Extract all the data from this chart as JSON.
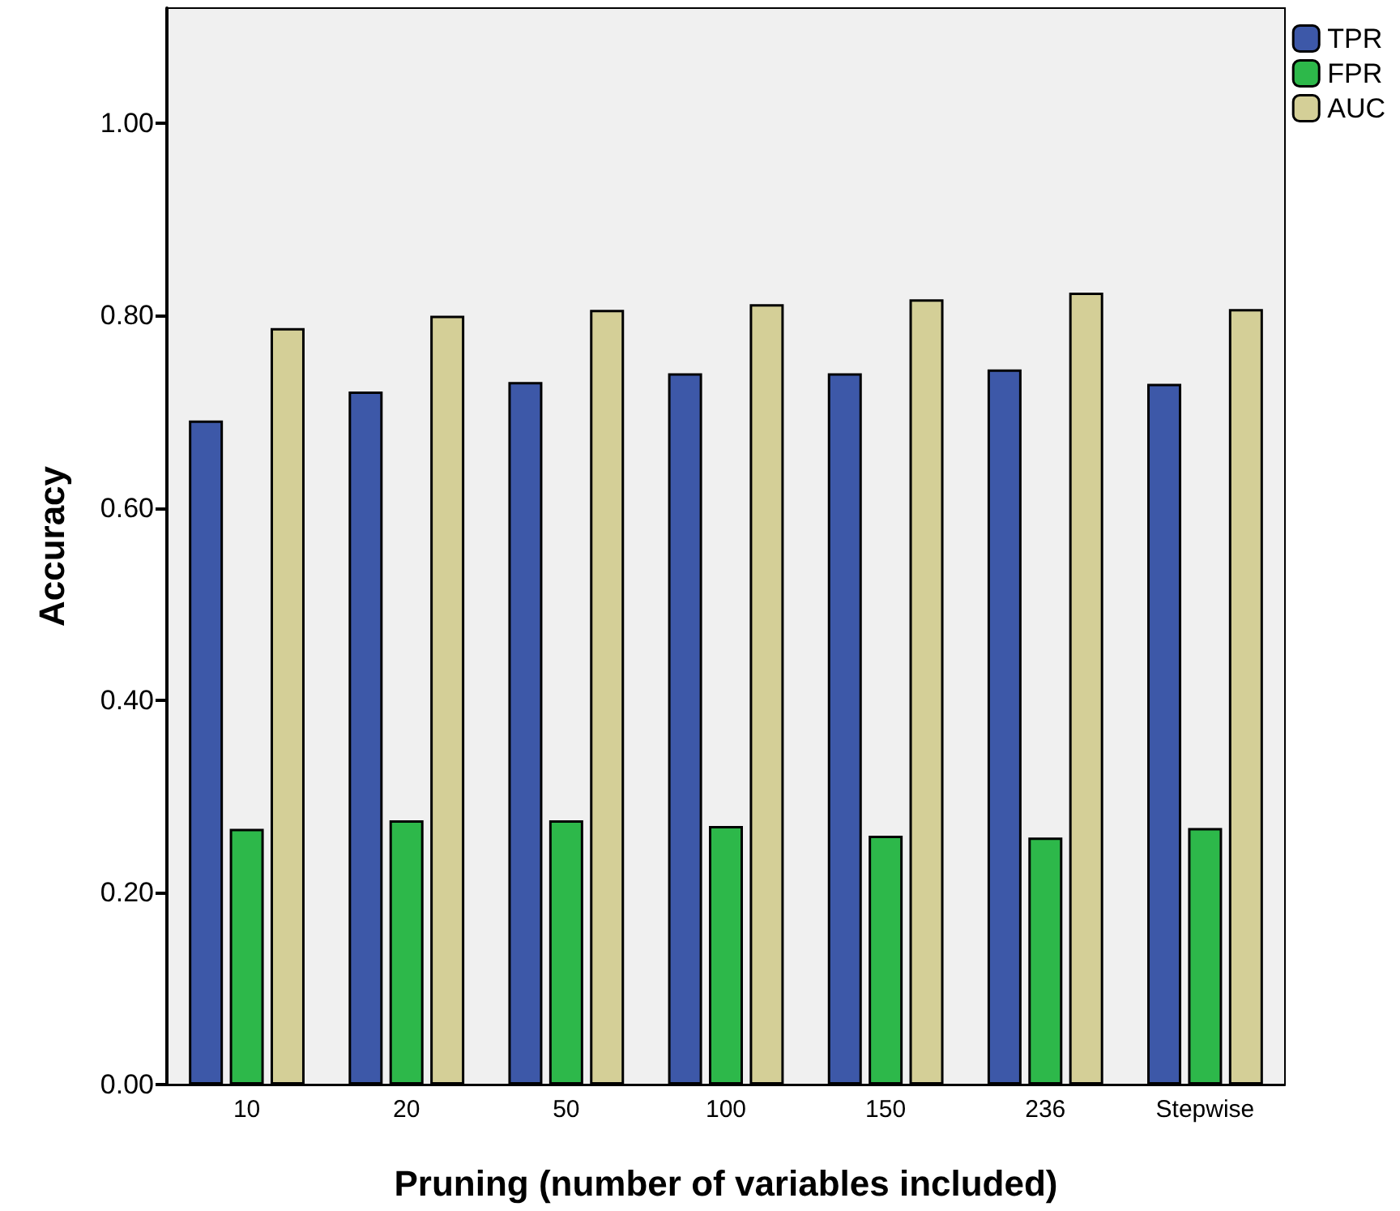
{
  "chart_data": {
    "type": "bar",
    "xlabel": "Pruning (number of variables included)",
    "ylabel": "Accuracy",
    "categories": [
      "10",
      "20",
      "50",
      "100",
      "150",
      "236",
      "Stepwise"
    ],
    "series": [
      {
        "name": "TPR",
        "color": "#3d58a8",
        "values": [
          0.691,
          0.721,
          0.731,
          0.74,
          0.74,
          0.744,
          0.729
        ]
      },
      {
        "name": "FPR",
        "color": "#2db84a",
        "values": [
          0.266,
          0.275,
          0.275,
          0.269,
          0.259,
          0.257,
          0.267
        ]
      },
      {
        "name": "AUC",
        "color": "#d4cf97",
        "values": [
          0.787,
          0.8,
          0.806,
          0.812,
          0.817,
          0.824,
          0.807
        ]
      }
    ],
    "ylim": [
      0,
      1.12
    ],
    "yticks": [
      {
        "value": 0,
        "label": "0.00"
      },
      {
        "value": 0.2,
        "label": "0.20"
      },
      {
        "value": 0.4,
        "label": "0.40"
      },
      {
        "value": 0.6,
        "label": "0.60"
      },
      {
        "value": 0.8,
        "label": "0.80"
      },
      {
        "value": 1,
        "label": "1.00"
      }
    ],
    "grid": false,
    "legend": "top right"
  }
}
